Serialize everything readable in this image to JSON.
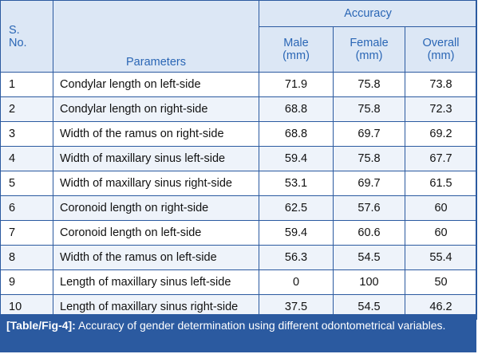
{
  "header": {
    "group": "Accuracy",
    "sno_line1": "S.",
    "sno_line2": "No.",
    "parameters": "Parameters",
    "male_line1": "Male",
    "male_line2": "(mm)",
    "female_line1": "Female",
    "female_line2": "(mm)",
    "overall_line1": "Overall",
    "overall_line2": "(mm)"
  },
  "rows": [
    {
      "sno": "1",
      "parameter": "Condylar length on left-side",
      "male": "71.9",
      "female": "75.8",
      "overall": "73.8"
    },
    {
      "sno": "2",
      "parameter": "Condylar length on right-side",
      "male": "68.8",
      "female": "75.8",
      "overall": "72.3"
    },
    {
      "sno": "3",
      "parameter": "Width of the ramus on right-side",
      "male": "68.8",
      "female": "69.7",
      "overall": "69.2"
    },
    {
      "sno": "4",
      "parameter": "Width of maxillary sinus left-side",
      "male": "59.4",
      "female": "75.8",
      "overall": "67.7"
    },
    {
      "sno": "5",
      "parameter": "Width of maxillary sinus right-side",
      "male": "53.1",
      "female": "69.7",
      "overall": "61.5"
    },
    {
      "sno": "6",
      "parameter": "Coronoid length on right-side",
      "male": "62.5",
      "female": "57.6",
      "overall": "60"
    },
    {
      "sno": "7",
      "parameter": "Coronoid length on left-side",
      "male": "59.4",
      "female": "60.6",
      "overall": "60"
    },
    {
      "sno": "8",
      "parameter": "Width of the ramus on left-side",
      "male": "56.3",
      "female": "54.5",
      "overall": "55.4"
    },
    {
      "sno": "9",
      "parameter": "Length of maxillary sinus left-side",
      "male": "0",
      "female": "100",
      "overall": "50"
    },
    {
      "sno": "10",
      "parameter": "Length of maxillary sinus right-side",
      "male": "37.5",
      "female": "54.5",
      "overall": "46.2"
    }
  ],
  "caption": {
    "label": "[Table/Fig-4]:",
    "text": " Accuracy of gender determination using different odontometrical variables."
  },
  "colors": {
    "header_bg": "#dce7f5",
    "header_text": "#2a66b5",
    "border": "#2b5aa0",
    "caption_bg": "#2b5aa0",
    "row_alt_bg": "#eef3fa"
  }
}
